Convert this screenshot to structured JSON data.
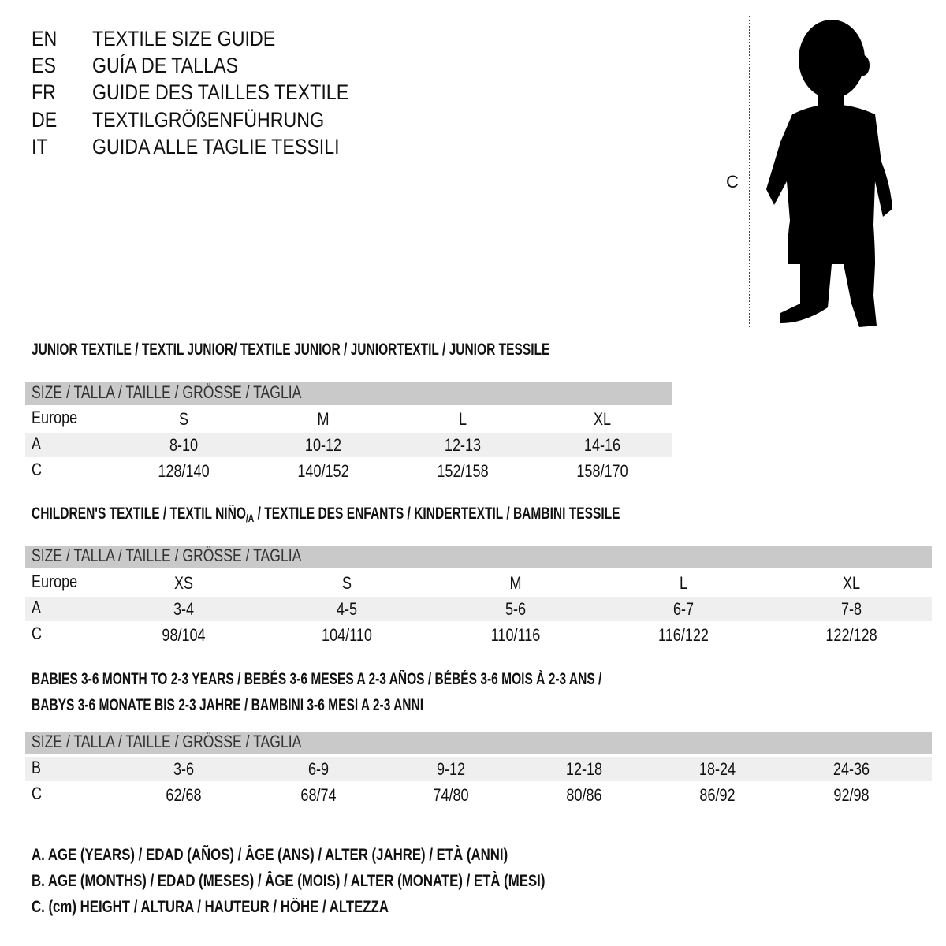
{
  "languages": [
    {
      "code": "EN",
      "title": "TEXTILE SIZE GUIDE"
    },
    {
      "code": "ES",
      "title": "GUÍA DE TALLAS"
    },
    {
      "code": "FR",
      "title": "GUIDE DES TAILLES TEXTILE"
    },
    {
      "code": "DE",
      "title": "TEXTILGRÖßENFÜHRUNG"
    },
    {
      "code": "IT",
      "title": "GUIDA ALLE TAGLIE TESSILI"
    }
  ],
  "figure": {
    "measure_label": "C",
    "icon": "child-silhouette"
  },
  "size_header": "SIZE / TALLA / TAILLE / GRÖSSE / TAGLIA",
  "junior": {
    "heading": "JUNIOR TEXTILE / TEXTIL JUNIOR/ TEXTILE JUNIOR / JUNIORTEXTIL / JUNIOR TESSILE",
    "rows": [
      {
        "label": "Europe",
        "values": [
          "S",
          "M",
          "L",
          "XL"
        ]
      },
      {
        "label": "A",
        "values": [
          "8-10",
          "10-12",
          "12-13",
          "14-16"
        ]
      },
      {
        "label": "C",
        "values": [
          "128/140",
          "140/152",
          "152/158",
          "158/170"
        ]
      }
    ]
  },
  "children": {
    "heading_pre": "CHILDREN'S TEXTILE / TEXTIL NIÑO",
    "heading_sub": "/A",
    "heading_post": " / TEXTILE DES ENFANTS / KINDERTEXTIL / BAMBINI TESSILE",
    "rows": [
      {
        "label": "Europe",
        "values": [
          "XS",
          "S",
          "M",
          "L",
          "XL"
        ]
      },
      {
        "label": "A",
        "values": [
          "3-4",
          "4-5",
          "5-6",
          "6-7",
          "7-8"
        ]
      },
      {
        "label": "C",
        "values": [
          "98/104",
          "104/110",
          "110/116",
          "116/122",
          "122/128"
        ]
      }
    ]
  },
  "babies": {
    "heading_line1": "BABIES 3-6 MONTH TO 2-3 YEARS / BEBÉS 3-6 MESES A 2-3 AÑOS / BÉBÉS 3-6 MOIS À 2-3 ANS /",
    "heading_line2": "BABYS 3-6 MONATE BIS 2-3 JAHRE / BAMBINI 3-6 MESI A 2-3 ANNI",
    "rows": [
      {
        "label": "B",
        "values": [
          "3-6",
          "6-9",
          "9-12",
          "12-18",
          "18-24",
          "24-36"
        ]
      },
      {
        "label": "C",
        "values": [
          "62/68",
          "68/74",
          "74/80",
          "80/86",
          "86/92",
          "92/98"
        ]
      }
    ]
  },
  "legend": [
    "A. AGE (YEARS) / EDAD (AÑOS) / ÂGE (ANS) / ALTER (JAHRE) / ETÀ (ANNI)",
    "B. AGE (MONTHS) / EDAD (MESES) / ÂGE (MOIS) / ALTER (MONATE) / ETÀ (MESI)",
    "C. (cm) HEIGHT / ALTURA / HAUTEUR / HÖHE / ALTEZZA"
  ],
  "colors": {
    "band": "#c9c9c9",
    "shade": "#efefef",
    "text": "#111111"
  }
}
